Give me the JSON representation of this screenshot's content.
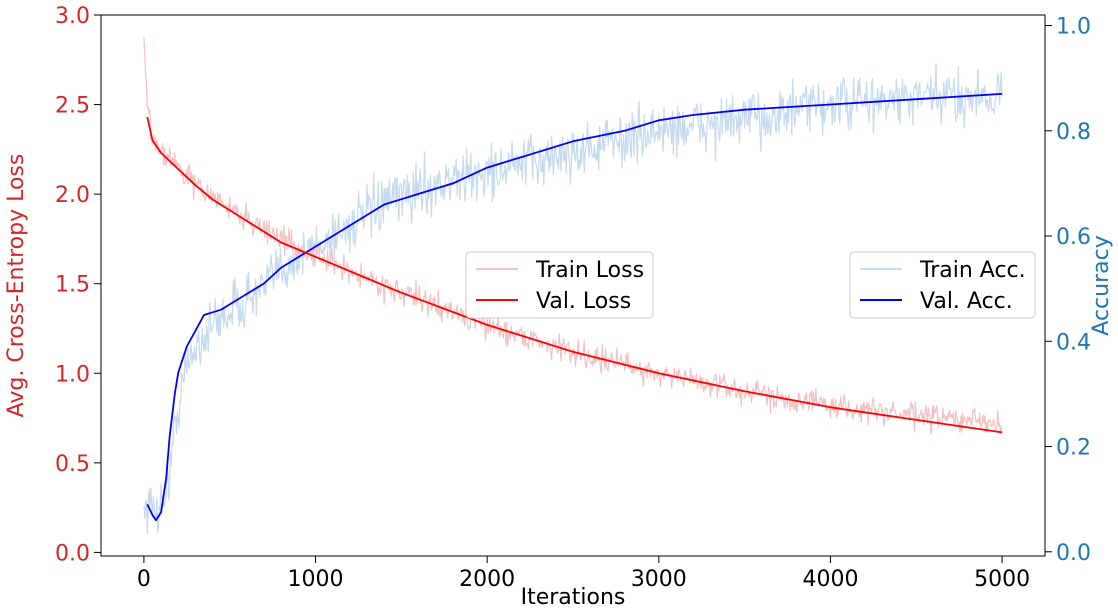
{
  "chart_data": {
    "type": "line",
    "title": "",
    "xlabel": "Iterations",
    "ylabel_left": "Avg. Cross-Entropy Loss",
    "ylabel_right": "Accuracy",
    "xlim": [
      -250,
      5250
    ],
    "ylim_left": [
      -0.02,
      3.0
    ],
    "ylim_right": [
      -0.008,
      1.02
    ],
    "x_ticks": [
      0,
      1000,
      2000,
      3000,
      4000,
      5000
    ],
    "x_tick_labels": [
      "0",
      "1000",
      "2000",
      "3000",
      "4000",
      "5000"
    ],
    "y_left_ticks": [
      0.0,
      0.5,
      1.0,
      1.5,
      2.0,
      2.5,
      3.0
    ],
    "y_left_tick_labels": [
      "0.0",
      "0.5",
      "1.0",
      "1.5",
      "2.0",
      "2.5",
      "3.0"
    ],
    "y_right_ticks": [
      0.0,
      0.2,
      0.4,
      0.6,
      0.8,
      1.0
    ],
    "y_right_tick_labels": [
      "0.0",
      "0.2",
      "0.4",
      "0.6",
      "0.8",
      "1.0"
    ],
    "grid": false,
    "colors": {
      "left_axis": "#d62728",
      "right_axis": "#1f77b4",
      "train_loss": "#f4c2c2",
      "val_loss": "#ff0000",
      "train_acc": "#c6dbef",
      "val_acc": "#0000ff"
    },
    "legend_loss": {
      "placement": "center",
      "entries": [
        "Train Loss",
        "Val. Loss"
      ]
    },
    "legend_acc": {
      "placement": "center-right",
      "entries": [
        "Train Acc.",
        "Val. Acc."
      ]
    },
    "series": [
      {
        "name": "Train Loss",
        "axis": "left",
        "style": "noisy",
        "x": [
          0,
          10,
          25,
          50,
          100,
          200,
          300,
          500,
          800,
          1000,
          1500,
          2000,
          2500,
          3000,
          3500,
          4000,
          4500,
          5000
        ],
        "y": [
          2.88,
          2.65,
          2.45,
          2.32,
          2.25,
          2.15,
          2.05,
          1.92,
          1.75,
          1.65,
          1.45,
          1.27,
          1.12,
          1.0,
          0.9,
          0.82,
          0.76,
          0.72
        ],
        "noise": 0.07
      },
      {
        "name": "Val. Loss",
        "axis": "left",
        "style": "smooth",
        "x": [
          20,
          50,
          100,
          200,
          300,
          400,
          500,
          600,
          800,
          1000,
          1200,
          1500,
          2000,
          2500,
          3000,
          3500,
          4000,
          4500,
          5000
        ],
        "y": [
          2.43,
          2.3,
          2.23,
          2.14,
          2.05,
          1.97,
          1.91,
          1.85,
          1.73,
          1.65,
          1.57,
          1.45,
          1.27,
          1.12,
          1.0,
          0.9,
          0.81,
          0.74,
          0.67
        ]
      },
      {
        "name": "Train Acc.",
        "axis": "right",
        "style": "noisy",
        "x": [
          0,
          50,
          100,
          150,
          200,
          250,
          300,
          400,
          500,
          700,
          800,
          1000,
          1200,
          1400,
          1600,
          2000,
          2500,
          3000,
          3500,
          4000,
          4500,
          5000
        ],
        "y": [
          0.09,
          0.08,
          0.09,
          0.15,
          0.28,
          0.35,
          0.39,
          0.43,
          0.46,
          0.5,
          0.54,
          0.58,
          0.62,
          0.66,
          0.69,
          0.72,
          0.76,
          0.8,
          0.82,
          0.85,
          0.86,
          0.87
        ],
        "noise": 0.05
      },
      {
        "name": "Val. Acc.",
        "axis": "right",
        "style": "smooth",
        "x": [
          20,
          50,
          70,
          100,
          130,
          150,
          180,
          200,
          250,
          300,
          350,
          400,
          450,
          500,
          600,
          700,
          800,
          900,
          1000,
          1100,
          1200,
          1300,
          1400,
          1500,
          1600,
          1800,
          2000,
          2200,
          2500,
          2800,
          3000,
          3200,
          3500,
          4000,
          4500,
          5000
        ],
        "y": [
          0.09,
          0.07,
          0.06,
          0.075,
          0.14,
          0.22,
          0.3,
          0.34,
          0.39,
          0.42,
          0.45,
          0.455,
          0.46,
          0.47,
          0.49,
          0.51,
          0.54,
          0.56,
          0.58,
          0.6,
          0.62,
          0.64,
          0.66,
          0.67,
          0.68,
          0.7,
          0.73,
          0.75,
          0.78,
          0.8,
          0.82,
          0.83,
          0.84,
          0.85,
          0.86,
          0.87
        ]
      }
    ]
  }
}
